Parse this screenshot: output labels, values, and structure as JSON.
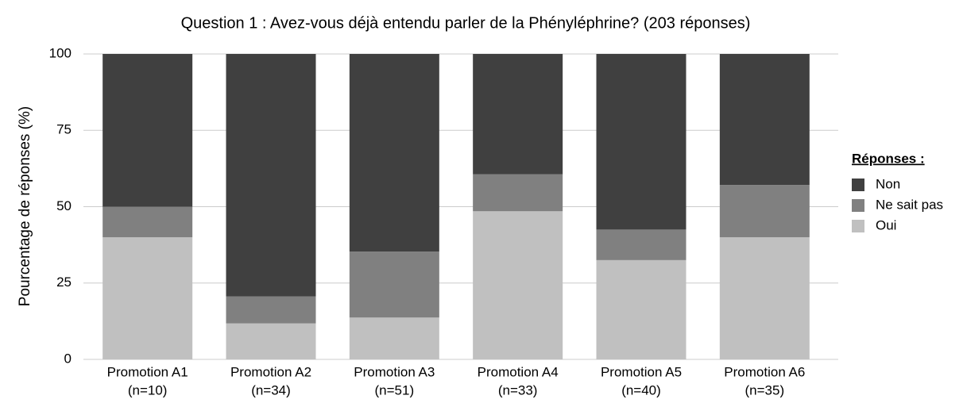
{
  "chart_data": {
    "type": "stacked_bar",
    "title": "Question 1 : Avez-vous déjà entendu parler de la Phényléphrine? (203 réponses)",
    "ylabel": "Pourcentage de réponses (%)",
    "categories": [
      [
        "Promotion A1",
        "(n=10)"
      ],
      [
        "Promotion A2",
        "(n=34)"
      ],
      [
        "Promotion A3",
        "(n=51)"
      ],
      [
        "Promotion A4",
        "(n=33)"
      ],
      [
        "Promotion A5",
        "(n=40)"
      ],
      [
        "Promotion A6",
        "(n=35)"
      ]
    ],
    "series": [
      {
        "name": "Oui",
        "color": "#c0c0c0",
        "values": [
          40,
          11.8,
          13.7,
          48.5,
          32.5,
          40
        ]
      },
      {
        "name": "Ne sait pas",
        "color": "#808080",
        "values": [
          10,
          8.8,
          21.6,
          12.1,
          10,
          17.1
        ]
      },
      {
        "name": "Non",
        "color": "#404040",
        "values": [
          50,
          79.4,
          64.7,
          39.4,
          57.5,
          42.9
        ]
      }
    ],
    "legend_title": "Réponses :",
    "legend": "right",
    "ylim": [
      0,
      100
    ],
    "yticks": [
      0,
      25,
      50,
      75,
      100
    ],
    "grid": true
  }
}
